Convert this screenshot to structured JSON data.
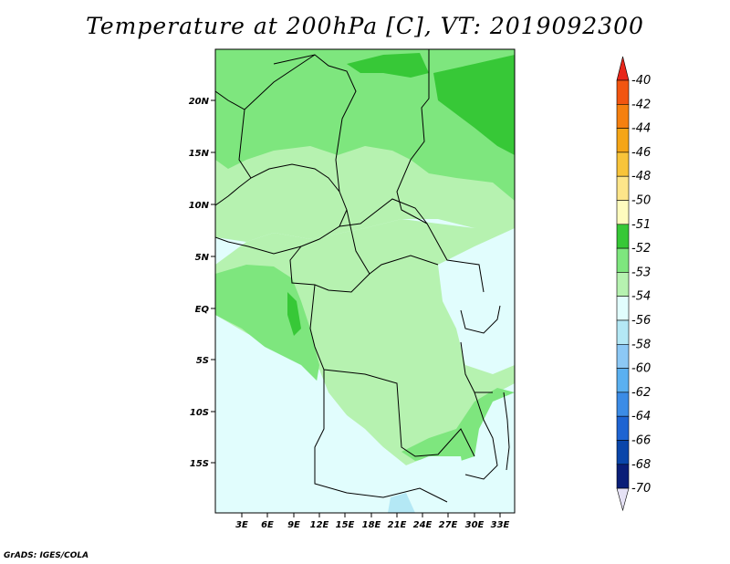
{
  "title": "Temperature at 200hPa [C], VT: 2019092300",
  "credit": "GrADS: IGES/COLA",
  "map": {
    "lat_labels": [
      "20N",
      "15N",
      "10N",
      "5N",
      "EQ",
      "5S",
      "10S",
      "15S"
    ],
    "lon_labels": [
      "3E",
      "6E",
      "9E",
      "12E",
      "15E",
      "18E",
      "21E",
      "24E",
      "27E",
      "30E",
      "33E"
    ]
  },
  "colorbar": {
    "labels": [
      "-40",
      "-42",
      "-44",
      "-46",
      "-48",
      "-50",
      "-51",
      "-52",
      "-53",
      "-54",
      "-56",
      "-58",
      "-60",
      "-62",
      "-64",
      "-66",
      "-68",
      "-70"
    ],
    "colors": [
      "#e8261a",
      "#f25510",
      "#f5800f",
      "#f5a516",
      "#f8c43a",
      "#fde58a",
      "#fefbbe",
      "#37c837",
      "#7ee67e",
      "#b6f2b0",
      "#e1fdfd",
      "#b4e8f5",
      "#8cc8f5",
      "#5ab0f0",
      "#3c8ce6",
      "#1e64d2",
      "#0a46aa",
      "#0a1e78",
      "#e6e2f5"
    ]
  }
}
